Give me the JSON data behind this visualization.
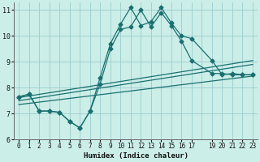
{
  "xlabel": "Humidex (Indice chaleur)",
  "bg_color": "#cceee8",
  "line_color": "#1a7070",
  "grid_color": "#99cccc",
  "xlim": [
    -0.5,
    23.5
  ],
  "ylim": [
    6,
    11.3
  ],
  "yticks": [
    6,
    7,
    8,
    9,
    10,
    11
  ],
  "xtick_positions": [
    0,
    1,
    2,
    3,
    4,
    5,
    6,
    7,
    8,
    9,
    10,
    11,
    12,
    13,
    14,
    15,
    16,
    17,
    19,
    20,
    21,
    22,
    23
  ],
  "xtick_labels": [
    "0",
    "1",
    "2",
    "3",
    "4",
    "5",
    "6",
    "7",
    "8",
    "9",
    "10",
    "11",
    "12",
    "13",
    "14",
    "15",
    "16",
    "17",
    "19",
    "20",
    "21",
    "22",
    "23"
  ],
  "line1_x": [
    0,
    1,
    2,
    3,
    4,
    5,
    6,
    7,
    8,
    9,
    10,
    11,
    12,
    13,
    14,
    15,
    16,
    17,
    19,
    20,
    21,
    22,
    23
  ],
  "line1_y": [
    7.65,
    7.75,
    7.1,
    7.1,
    7.05,
    6.7,
    6.45,
    7.1,
    8.4,
    9.7,
    10.45,
    11.1,
    10.4,
    10.55,
    11.1,
    10.5,
    10.0,
    9.9,
    9.05,
    8.5,
    8.55,
    8.5,
    8.5
  ],
  "line2_x": [
    0,
    1,
    2,
    3,
    4,
    5,
    6,
    7,
    8,
    9,
    10,
    11,
    12,
    13,
    14,
    15,
    16,
    17,
    19,
    20,
    21,
    22,
    23
  ],
  "line2_y": [
    7.65,
    7.75,
    7.1,
    7.1,
    7.05,
    6.7,
    6.45,
    7.1,
    8.15,
    9.5,
    10.25,
    10.35,
    11.0,
    10.35,
    10.9,
    10.4,
    9.8,
    9.05,
    8.55,
    8.55,
    8.5,
    8.5,
    8.5
  ],
  "line3_x": [
    0,
    23
  ],
  "line3_y": [
    7.62,
    9.05
  ],
  "line4_x": [
    0,
    23
  ],
  "line4_y": [
    7.5,
    8.9
  ],
  "line5_x": [
    0,
    23
  ],
  "line5_y": [
    7.35,
    8.45
  ]
}
